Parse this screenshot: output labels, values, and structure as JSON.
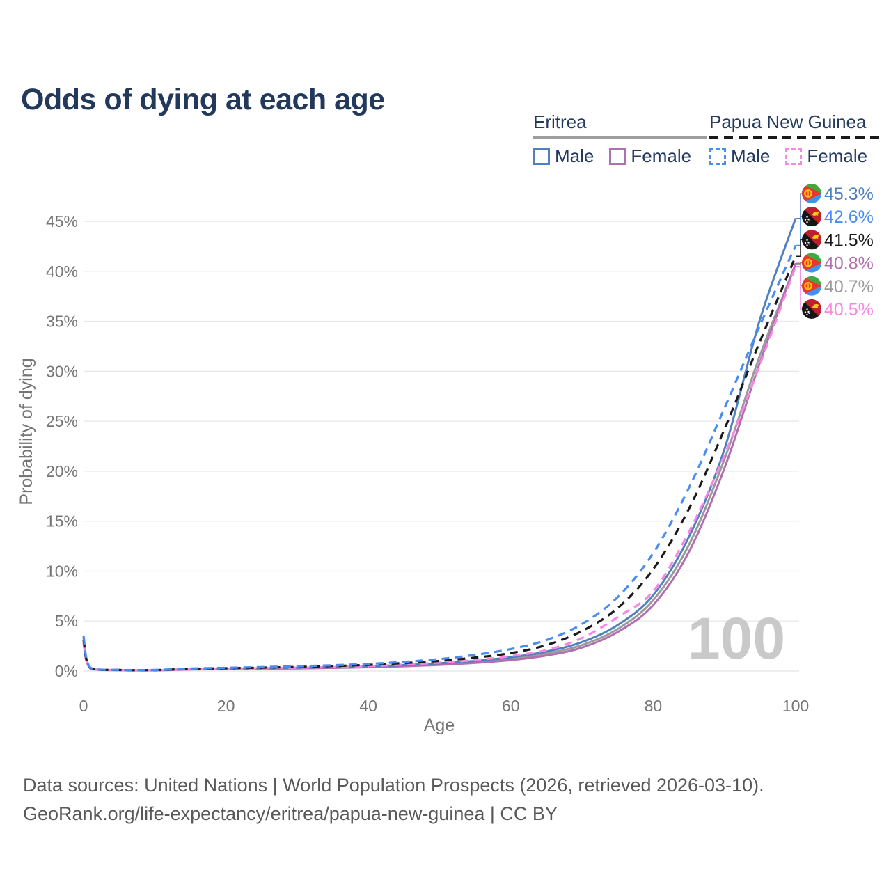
{
  "title": "Odds of dying at each age",
  "watermark": "100",
  "legend": {
    "groups": [
      {
        "country": "Eritrea",
        "line_style": "solid",
        "underline_color": "#9e9e9e",
        "items": [
          {
            "label": "Male",
            "color": "#5080bd"
          },
          {
            "label": "Female",
            "color": "#b06fae"
          }
        ]
      },
      {
        "country": "Papua New Guinea",
        "line_style": "dashed",
        "underline_color": "#1a1a1a",
        "items": [
          {
            "label": "Male",
            "color": "#4a8df0"
          },
          {
            "label": "Female",
            "color": "#f985e6"
          }
        ]
      }
    ]
  },
  "footer": {
    "line1": "Data sources: United Nations | World Population Prospects (2026, retrieved 2026-03-10).",
    "line2": "GeoRank.org/life-expectancy/eritrea/papua-new-guinea | CC BY"
  },
  "chart_data": {
    "type": "line",
    "title": "Odds of dying at each age",
    "xlabel": "Age",
    "ylabel": "Probability of dying",
    "xlim": [
      0,
      100
    ],
    "ylim": [
      0,
      47.5
    ],
    "x_ticks": [
      0,
      20,
      40,
      60,
      80,
      100
    ],
    "y_ticks": [
      0,
      5,
      10,
      15,
      20,
      25,
      30,
      35,
      40,
      45
    ],
    "y_tick_suffix": "%",
    "grid": "horizontal",
    "legend_position": "top-right",
    "ages": [
      0,
      1,
      5,
      10,
      15,
      20,
      25,
      30,
      35,
      40,
      45,
      50,
      55,
      60,
      65,
      70,
      75,
      80,
      85,
      90,
      95,
      100
    ],
    "series": [
      {
        "name": "Eritrea (both sexes)",
        "country": "Eritrea",
        "sex": "Both",
        "color": "#9a9a9a",
        "dash": "solid",
        "flag": "eritrea",
        "end_label": "40.7%",
        "values": [
          3.2,
          0.26,
          0.09,
          0.08,
          0.18,
          0.21,
          0.25,
          0.29,
          0.35,
          0.43,
          0.54,
          0.7,
          0.92,
          1.24,
          1.75,
          2.6,
          4.2,
          7.1,
          12.6,
          21.2,
          31.6,
          40.7
        ]
      },
      {
        "name": "Eritrea Female",
        "country": "Eritrea",
        "sex": "Female",
        "color": "#b06fae",
        "dash": "solid",
        "flag": "eritrea",
        "end_label": "40.8%",
        "values": [
          2.9,
          0.24,
          0.08,
          0.07,
          0.16,
          0.19,
          0.22,
          0.26,
          0.31,
          0.38,
          0.48,
          0.62,
          0.82,
          1.1,
          1.55,
          2.35,
          3.9,
          6.6,
          11.9,
          20.3,
          30.9,
          40.8
        ]
      },
      {
        "name": "Eritrea Male",
        "country": "Eritrea",
        "sex": "Male",
        "color": "#5080bd",
        "dash": "solid",
        "flag": "eritrea",
        "end_label": "45.3%",
        "values": [
          3.5,
          0.28,
          0.1,
          0.09,
          0.2,
          0.24,
          0.28,
          0.33,
          0.4,
          0.48,
          0.6,
          0.78,
          1.02,
          1.38,
          1.95,
          2.9,
          4.6,
          7.6,
          13.4,
          22.2,
          35.2,
          45.3
        ]
      },
      {
        "name": "Papua New Guinea Female",
        "country": "Papua New Guinea",
        "sex": "Female",
        "color": "#f985e6",
        "dash": "dashed",
        "flag": "png",
        "end_label": "40.5%",
        "values": [
          2.8,
          0.26,
          0.09,
          0.08,
          0.18,
          0.22,
          0.27,
          0.33,
          0.4,
          0.5,
          0.64,
          0.84,
          1.1,
          1.5,
          2.1,
          3.3,
          5.4,
          8.0,
          13.9,
          21.6,
          30.7,
          40.5
        ]
      },
      {
        "name": "Papua New Guinea (both sexes)",
        "country": "Papua New Guinea",
        "sex": "Both",
        "color": "#1a1a1a",
        "dash": "dashed",
        "flag": "png",
        "end_label": "41.5%",
        "values": [
          3.1,
          0.29,
          0.11,
          0.1,
          0.22,
          0.28,
          0.34,
          0.41,
          0.5,
          0.62,
          0.8,
          1.02,
          1.35,
          1.8,
          2.6,
          4.0,
          6.3,
          10.2,
          16.2,
          24.2,
          33.0,
          41.5
        ]
      },
      {
        "name": "Papua New Guinea Male",
        "country": "Papua New Guinea",
        "sex": "Male",
        "color": "#4a8df0",
        "dash": "dashed",
        "flag": "png",
        "end_label": "42.6%",
        "values": [
          3.4,
          0.32,
          0.12,
          0.11,
          0.25,
          0.32,
          0.4,
          0.48,
          0.58,
          0.72,
          0.92,
          1.2,
          1.62,
          2.2,
          3.1,
          4.7,
          7.4,
          11.8,
          18.3,
          26.3,
          34.6,
          42.6
        ]
      }
    ]
  }
}
